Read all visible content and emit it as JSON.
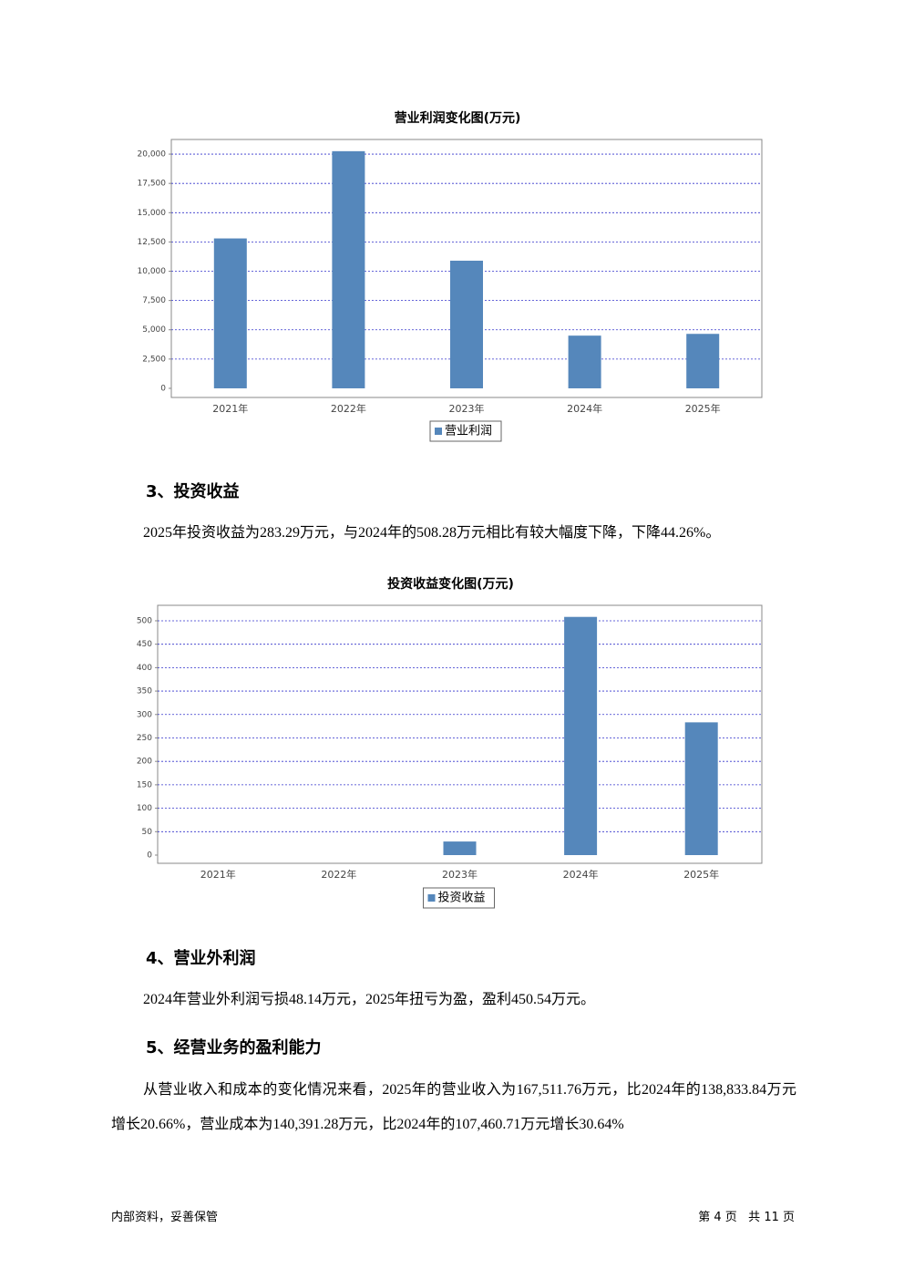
{
  "chart_data": [
    {
      "type": "bar",
      "title": "营业利润变化图(万元)",
      "categories": [
        "2021年",
        "2022年",
        "2023年",
        "2024年",
        "2025年"
      ],
      "series": [
        {
          "name": "营业利润",
          "color": "#5587bb",
          "values": [
            12800,
            20250,
            10900,
            4500,
            4650
          ]
        }
      ],
      "ylim": [
        -780,
        21250
      ],
      "yticks": [
        0,
        {
          "value": 2500,
          "label": "2,500"
        },
        {
          "value": 5000,
          "label": "5,000"
        },
        {
          "value": 7500,
          "label": "7,500"
        },
        {
          "value": 10000,
          "label": "10,000"
        },
        {
          "value": 12500,
          "label": "12,500"
        },
        {
          "value": 15000,
          "label": "15,000"
        },
        {
          "value": 17500,
          "label": "17,500"
        },
        {
          "value": 20000,
          "label": "20,000"
        }
      ],
      "grid": true
    },
    {
      "type": "bar",
      "title": "投资收益变化图(万元)",
      "categories": [
        "2021年",
        "2022年",
        "2023年",
        "2024年",
        "2025年"
      ],
      "series": [
        {
          "name": "投资收益",
          "color": "#5587bb",
          "values": [
            0,
            0,
            29,
            508.28,
            283.29
          ]
        }
      ],
      "ylim": [
        -17.5,
        533
      ],
      "yticks": [
        0,
        50,
        100,
        150,
        200,
        250,
        300,
        350,
        400,
        450,
        500
      ],
      "grid": true
    }
  ],
  "sections": [
    {
      "heading": "3、投资收益",
      "text": "2025年投资收益为283.29万元，与2024年的508.28万元相比有较大幅度下降，下降44.26%。"
    },
    {
      "heading": "4、营业外利润",
      "text": "2024年营业外利润亏损48.14万元，2025年扭亏为盈，盈利450.54万元。"
    },
    {
      "heading": "5、经营业务的盈利能力",
      "text": "从营业收入和成本的变化情况来看，2025年的营业收入为167,511.76万元，比2024年的138,833.84万元增长20.66%，营业成本为140,391.28万元，比2024年的107,460.71万元增长30.64%"
    }
  ],
  "footer": {
    "left": "内部资料，妥善保管",
    "right": "第 4 页   共 11 页"
  }
}
